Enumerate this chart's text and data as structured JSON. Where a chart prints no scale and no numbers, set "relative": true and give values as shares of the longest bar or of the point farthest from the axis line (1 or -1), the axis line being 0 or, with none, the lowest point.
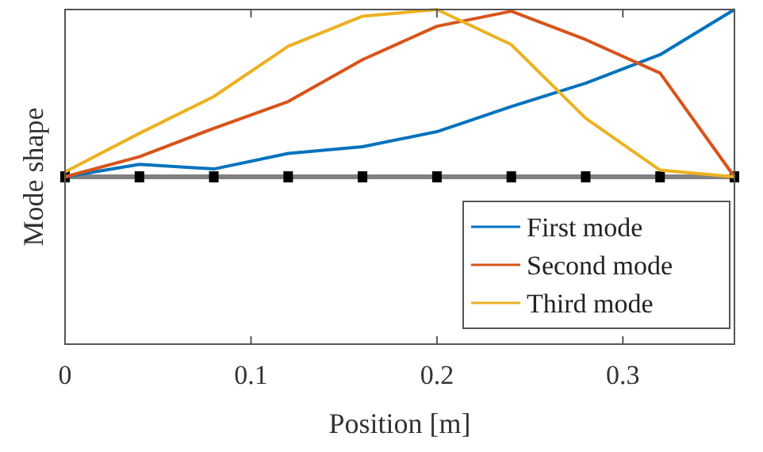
{
  "chart_data": {
    "type": "line",
    "xlabel": "Position [m]",
    "ylabel": "Mode shape",
    "relative": true,
    "x": [
      0,
      0.04,
      0.08,
      0.12,
      0.16,
      0.2,
      0.24,
      0.28,
      0.32,
      0.36
    ],
    "xlim": [
      0,
      0.36
    ],
    "xticks": [
      0,
      0.1,
      0.2,
      0.3
    ],
    "series": [
      {
        "type": "scatter",
        "color": "#000000",
        "marker": "square",
        "values": [
          0,
          0,
          0,
          0,
          0,
          0,
          0,
          0,
          0,
          0
        ]
      },
      {
        "name": "First mode",
        "color": "#0072bd",
        "values": [
          0,
          0.075,
          0.047,
          0.14,
          0.18,
          0.27,
          0.42,
          0.56,
          0.73,
          1
        ]
      },
      {
        "name": "Second mode",
        "color": "#d95319",
        "values": [
          0,
          0.12,
          0.29,
          0.45,
          0.7,
          0.9,
          0.99,
          0.82,
          0.62,
          0
        ]
      },
      {
        "name": "Third mode",
        "color": "#edb120",
        "values": [
          0.03,
          0.26,
          0.48,
          0.78,
          0.96,
          1,
          0.79,
          0.35,
          0.04,
          0
        ]
      }
    ],
    "ref_lines": [
      {
        "axis": "y",
        "value": 0,
        "color": "#808080"
      }
    ],
    "legend": "bottom right"
  }
}
